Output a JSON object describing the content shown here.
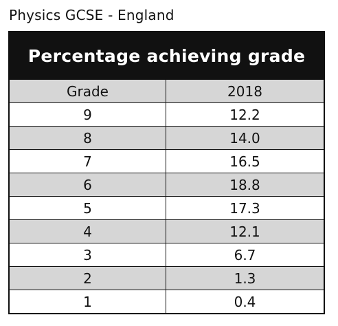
{
  "caption": "Physics GCSE - England",
  "chart_data": {
    "type": "table",
    "title": "Percentage achieving grade",
    "columns": [
      "Grade",
      "2018"
    ],
    "categories": [
      "9",
      "8",
      "7",
      "6",
      "5",
      "4",
      "3",
      "2",
      "1"
    ],
    "series": [
      {
        "name": "2018",
        "values": [
          12.2,
          14.0,
          16.5,
          18.8,
          17.3,
          12.1,
          6.7,
          1.3,
          0.4
        ]
      }
    ],
    "display_values": [
      "12.2",
      "14.0",
      "16.5",
      "18.8",
      "17.3",
      "12.1",
      "6.7",
      "1.3",
      "0.4"
    ]
  },
  "colors": {
    "title_bg": "#111111",
    "title_text": "#ffffff",
    "shaded_row": "#d6d6d6",
    "plain_row": "#ffffff"
  }
}
